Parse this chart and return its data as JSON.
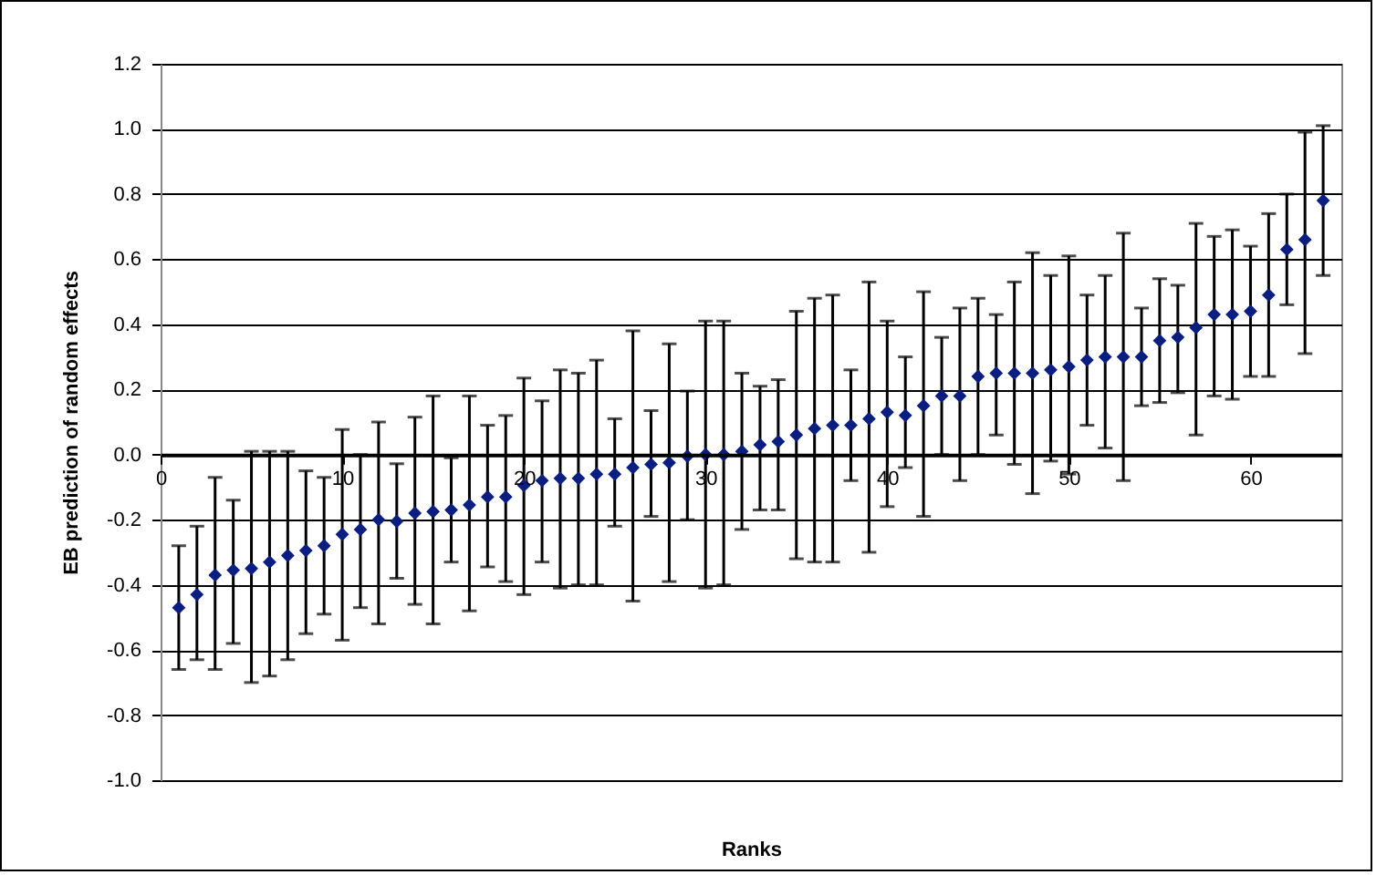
{
  "chart_data": {
    "type": "scatter",
    "xlabel": "Ranks",
    "ylabel": "EB prediction of random effects",
    "x": [
      1,
      2,
      3,
      4,
      5,
      6,
      7,
      8,
      9,
      10,
      11,
      12,
      13,
      14,
      15,
      16,
      17,
      18,
      19,
      20,
      21,
      22,
      23,
      24,
      25,
      26,
      27,
      28,
      29,
      30,
      31,
      32,
      33,
      34,
      35,
      36,
      37,
      38,
      39,
      40,
      41,
      42,
      43,
      44,
      45,
      46,
      47,
      48,
      49,
      50,
      51,
      52,
      53,
      54,
      55,
      56,
      57,
      58,
      59,
      60,
      61,
      62,
      63,
      64
    ],
    "series": [
      {
        "color": "#0a1e82",
        "values": [
          -0.47,
          -0.43,
          -0.37,
          -0.355,
          -0.35,
          -0.33,
          -0.31,
          -0.295,
          -0.28,
          -0.245,
          -0.23,
          -0.2,
          -0.205,
          -0.18,
          -0.175,
          -0.17,
          -0.155,
          -0.13,
          -0.13,
          -0.095,
          -0.08,
          -0.073,
          -0.073,
          -0.06,
          -0.06,
          -0.04,
          -0.03,
          -0.025,
          -0.005,
          0.0,
          0.0,
          0.01,
          0.03,
          0.04,
          0.06,
          0.08,
          0.09,
          0.09,
          0.11,
          0.13,
          0.12,
          0.15,
          0.18,
          0.18,
          0.24,
          0.25,
          0.25,
          0.25,
          0.26,
          0.27,
          0.29,
          0.3,
          0.3,
          0.3,
          0.35,
          0.36,
          0.39,
          0.43,
          0.43,
          0.44,
          0.49,
          0.63,
          0.66,
          0.78
        ],
        "errors": [
          [
            -0.66,
            -0.28
          ],
          [
            -0.63,
            -0.22
          ],
          [
            -0.66,
            -0.07
          ],
          [
            -0.58,
            -0.14
          ],
          [
            -0.7,
            0.01
          ],
          [
            -0.68,
            0.01
          ],
          [
            -0.63,
            0.01
          ],
          [
            -0.55,
            -0.05
          ],
          [
            -0.49,
            -0.07
          ],
          [
            -0.57,
            0.077
          ],
          [
            -0.47,
            0.0
          ],
          [
            -0.52,
            0.1
          ],
          [
            -0.38,
            -0.028
          ],
          [
            -0.46,
            0.115
          ],
          [
            -0.52,
            0.18
          ],
          [
            -0.33,
            -0.01
          ],
          [
            -0.48,
            0.18
          ],
          [
            -0.345,
            0.09
          ],
          [
            -0.39,
            0.12
          ],
          [
            -0.43,
            0.235
          ],
          [
            -0.33,
            0.165
          ],
          [
            -0.41,
            0.26
          ],
          [
            -0.4,
            0.25
          ],
          [
            -0.4,
            0.29
          ],
          [
            -0.22,
            0.11
          ],
          [
            -0.45,
            0.38
          ],
          [
            -0.19,
            0.135
          ],
          [
            -0.39,
            0.34
          ],
          [
            -0.2,
            0.195
          ],
          [
            -0.41,
            0.41
          ],
          [
            -0.4,
            0.41
          ],
          [
            -0.23,
            0.25
          ],
          [
            -0.17,
            0.21
          ],
          [
            -0.17,
            0.23
          ],
          [
            -0.32,
            0.44
          ],
          [
            -0.33,
            0.48
          ],
          [
            -0.33,
            0.49
          ],
          [
            -0.08,
            0.26
          ],
          [
            -0.3,
            0.53
          ],
          [
            -0.16,
            0.41
          ],
          [
            -0.04,
            0.3
          ],
          [
            -0.19,
            0.5
          ],
          [
            0.0,
            0.36
          ],
          [
            -0.08,
            0.45
          ],
          [
            0.0,
            0.48
          ],
          [
            0.06,
            0.43
          ],
          [
            -0.03,
            0.53
          ],
          [
            -0.12,
            0.62
          ],
          [
            -0.02,
            0.55
          ],
          [
            -0.06,
            0.61
          ],
          [
            0.09,
            0.49
          ],
          [
            0.02,
            0.55
          ],
          [
            -0.08,
            0.68
          ],
          [
            0.15,
            0.45
          ],
          [
            0.16,
            0.54
          ],
          [
            0.19,
            0.52
          ],
          [
            0.06,
            0.71
          ],
          [
            0.18,
            0.67
          ],
          [
            0.17,
            0.69
          ],
          [
            0.24,
            0.64
          ],
          [
            0.24,
            0.74
          ],
          [
            0.46,
            0.8
          ],
          [
            0.31,
            0.99
          ],
          [
            0.55,
            1.01
          ]
        ]
      }
    ],
    "xlim": [
      0,
      65
    ],
    "xticks": [
      0,
      10,
      20,
      30,
      40,
      50,
      60
    ],
    "ylim": [
      -1.0,
      1.2
    ],
    "yticks": [
      {
        "value": -1.0,
        "label": "-1.0"
      },
      -0.8,
      -0.6,
      -0.4,
      -0.2,
      {
        "value": 0,
        "label": "0.0"
      },
      0.2,
      0.4,
      0.6,
      0.8,
      {
        "value": 1.0,
        "label": "1.0"
      },
      1.2
    ],
    "grid": "y",
    "marker": "diamond"
  }
}
